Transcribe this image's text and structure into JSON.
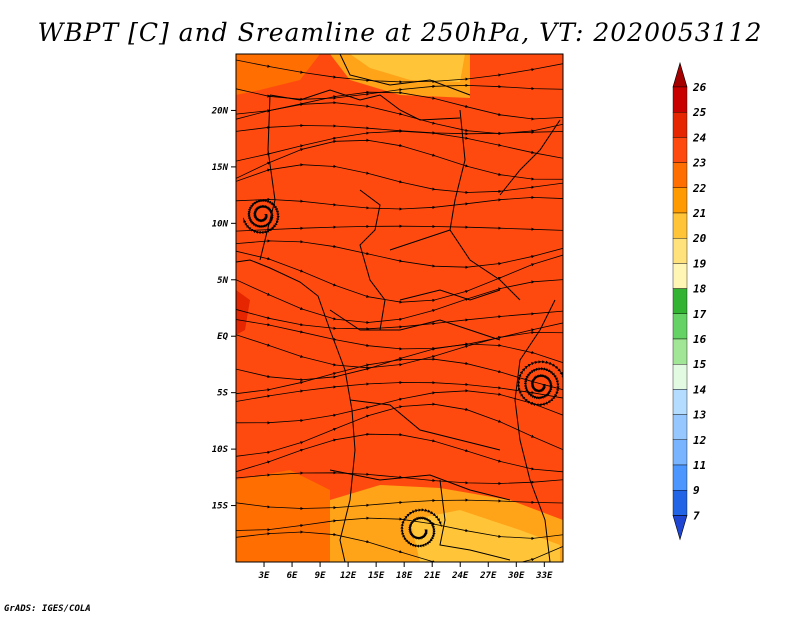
{
  "title": "WBPT [C] and Sreamline at 250hPa, VT: 2020053112",
  "footer": "GrADS: IGES/COLA",
  "map": {
    "lon_range": [
      0,
      35
    ],
    "lat_range": [
      -20,
      25
    ],
    "lon_ticks": [
      "3E",
      "6E",
      "9E",
      "12E",
      "15E",
      "18E",
      "21E",
      "24E",
      "27E",
      "30E",
      "33E"
    ],
    "lat_ticks": [
      "20N",
      "15N",
      "10N",
      "5N",
      "EQ",
      "5S",
      "10S",
      "15S"
    ],
    "base_fill_color": "#ff4a0f",
    "warm_patch_colors": [
      "#ffa318",
      "#ffc437",
      "#ffde74"
    ]
  },
  "colorbar": {
    "labels": [
      "26",
      "25",
      "24",
      "23",
      "22",
      "21",
      "20",
      "19",
      "18",
      "17",
      "16",
      "15",
      "14",
      "13",
      "12",
      "11",
      "9",
      "7"
    ],
    "colors": [
      "#a50000",
      "#c80000",
      "#e62600",
      "#ff4a0f",
      "#ff6e00",
      "#ff9b00",
      "#ffc437",
      "#ffe27c",
      "#fff5b4",
      "#32b432",
      "#64d264",
      "#a0e696",
      "#e1fae1",
      "#b4dcff",
      "#96c8ff",
      "#78b4ff",
      "#4b96ff",
      "#2164e6",
      "#1e46d2"
    ]
  }
}
